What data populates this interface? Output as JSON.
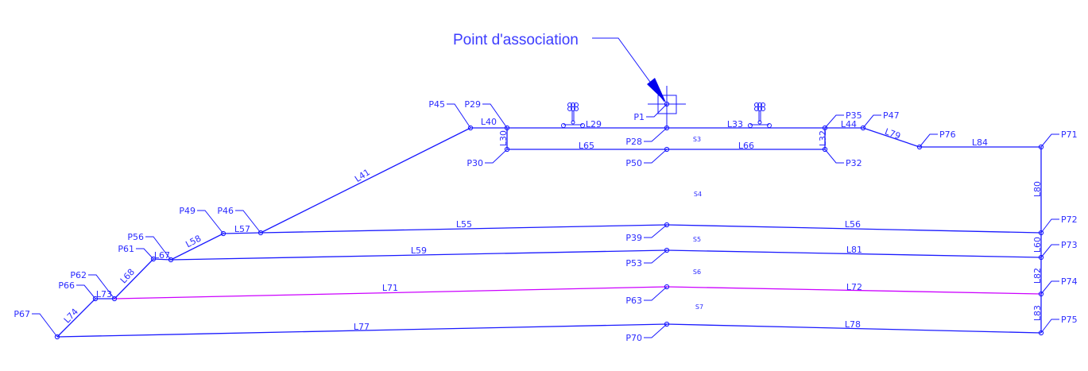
{
  "title": "Point d'association",
  "colors": {
    "main": "#1a1aff",
    "highlight": "#cc00ff",
    "text": "#2b2bff"
  },
  "icons": [
    "rail-symbol-icon",
    "rail-symbol-icon",
    "association-crosshair-icon"
  ],
  "points": [
    "P45",
    "P29",
    "P1",
    "P28",
    "P30",
    "P50",
    "P35",
    "P32",
    "P47",
    "P76",
    "P71",
    "P46",
    "P49",
    "P39",
    "P72",
    "P56",
    "P61",
    "P53",
    "P73",
    "P62",
    "P66",
    "P63",
    "P74",
    "P67",
    "P70",
    "P75"
  ],
  "lines": [
    "L40",
    "L29",
    "L33",
    "L44",
    "L79",
    "L84",
    "L30",
    "L65",
    "L66",
    "L32",
    "L41",
    "L57",
    "L55",
    "L56",
    "L80",
    "L58",
    "L67",
    "L59",
    "L81",
    "L60",
    "L68",
    "L73",
    "L71",
    "L72",
    "L82",
    "L74",
    "L77",
    "L78",
    "L83"
  ],
  "surfaces": [
    "S3",
    "S4",
    "S5",
    "S6",
    "S7"
  ],
  "highlighted_lines": [
    "L71",
    "L72"
  ]
}
